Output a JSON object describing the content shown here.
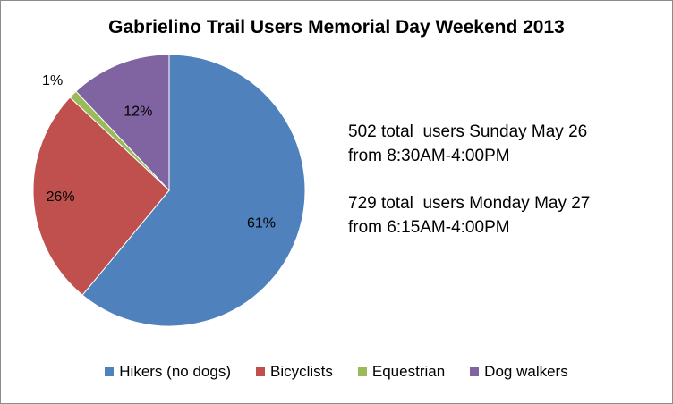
{
  "chart_data": {
    "type": "pie",
    "title": "Gabrielino Trail Users Memorial Day Weekend 2013",
    "categories": [
      "Hikers (no dogs)",
      "Bicyclists",
      "Equestrian",
      "Dog walkers"
    ],
    "values": [
      61,
      26,
      1,
      12
    ],
    "value_labels": [
      "61%",
      "26%",
      "1%",
      "12%"
    ],
    "colors": [
      "#4f81bd",
      "#c0504d",
      "#9bbb59",
      "#8064a2"
    ],
    "start_angle_deg": 0,
    "direction": "clockwise",
    "legend_position": "bottom",
    "annotations": [
      [
        "502 total  users Sunday May 26",
        "from 8:30AM-4:00PM"
      ],
      [
        "729 total  users Monday May 27",
        "from 6:15AM-4:00PM"
      ]
    ]
  }
}
